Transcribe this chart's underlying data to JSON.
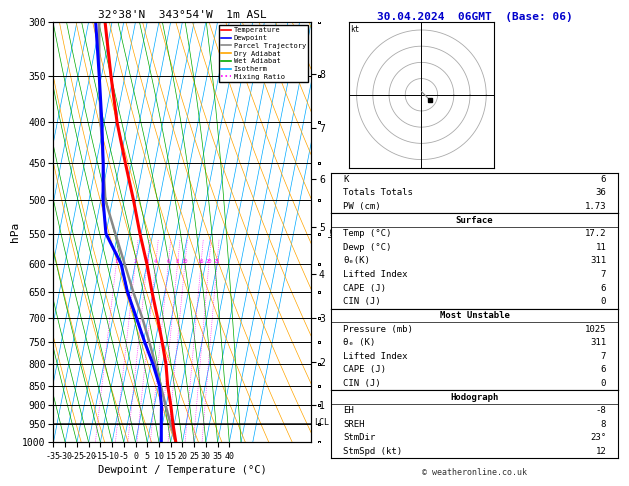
{
  "title_left": "32°38'N  343°54'W  1m ASL",
  "title_right": "30.04.2024  06GMT  (Base: 06)",
  "xlabel": "Dewpoint / Temperature (°C)",
  "ylabel_left": "hPa",
  "pressure_levels": [
    300,
    350,
    400,
    450,
    500,
    550,
    600,
    650,
    700,
    750,
    800,
    850,
    900,
    950,
    1000
  ],
  "pressure_min": 300,
  "pressure_max": 1000,
  "temp_min": -35,
  "temp_max": 40,
  "temp_profile": {
    "pressure": [
      1000,
      950,
      900,
      850,
      800,
      750,
      700,
      650,
      600,
      550,
      500,
      450,
      400,
      350,
      300
    ],
    "temperature": [
      17.2,
      14.5,
      12.0,
      9.0,
      6.5,
      3.0,
      -1.0,
      -5.5,
      -10.0,
      -15.5,
      -21.0,
      -27.5,
      -34.5,
      -41.0,
      -48.0
    ],
    "color": "#ff0000",
    "linewidth": 2.2
  },
  "dewp_profile": {
    "pressure": [
      1000,
      950,
      900,
      850,
      800,
      750,
      700,
      650,
      600,
      550,
      500,
      450,
      400,
      350,
      300
    ],
    "temperature": [
      11.0,
      9.5,
      8.0,
      5.5,
      1.0,
      -4.5,
      -10.0,
      -16.0,
      -21.0,
      -30.0,
      -34.0,
      -37.0,
      -41.0,
      -46.0,
      -52.0
    ],
    "color": "#0000ff",
    "linewidth": 2.2
  },
  "parcel_profile": {
    "pressure": [
      1000,
      950,
      900,
      850,
      800,
      750,
      700,
      650,
      600,
      550,
      500,
      450,
      400,
      350,
      300
    ],
    "temperature": [
      17.2,
      13.5,
      9.8,
      6.0,
      2.0,
      -2.5,
      -7.5,
      -13.5,
      -19.5,
      -26.0,
      -33.0,
      -37.0,
      -41.5,
      -46.0,
      -50.5
    ],
    "color": "#888888",
    "linewidth": 1.8
  },
  "lcl_pressure": 945,
  "mixing_ratio_lines": [
    1,
    2,
    3,
    4,
    6,
    8,
    10,
    16,
    20,
    25
  ],
  "mixing_ratio_color": "#ff00ff",
  "dry_adiabat_color": "#ffa500",
  "wet_adiabat_color": "#00aa00",
  "isotherm_color": "#00aaff",
  "km_ticks": [
    1,
    2,
    3,
    4,
    5,
    6,
    7,
    8
  ],
  "km_pressures": [
    898,
    795,
    700,
    618,
    540,
    470,
    406,
    348
  ],
  "legend_items": [
    {
      "label": "Temperature",
      "color": "#ff0000",
      "linestyle": "-"
    },
    {
      "label": "Dewpoint",
      "color": "#0000ff",
      "linestyle": "-"
    },
    {
      "label": "Parcel Trajectory",
      "color": "#888888",
      "linestyle": "-"
    },
    {
      "label": "Dry Adiabat",
      "color": "#ffa500",
      "linestyle": "-"
    },
    {
      "label": "Wet Adiabat",
      "color": "#00aa00",
      "linestyle": "-"
    },
    {
      "label": "Isotherm",
      "color": "#00aaff",
      "linestyle": "-"
    },
    {
      "label": "Mixing Ratio",
      "color": "#ff00ff",
      "linestyle": ":"
    }
  ],
  "copyright": "© weatheronline.co.uk"
}
